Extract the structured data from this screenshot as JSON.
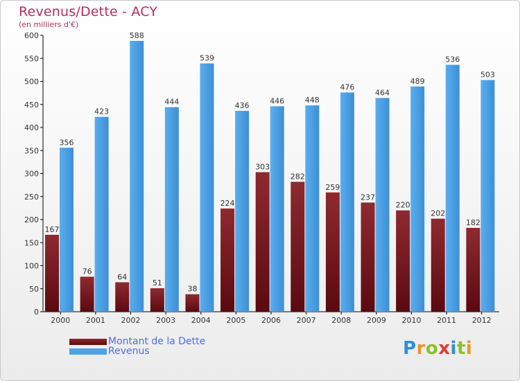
{
  "title": "Revenus/Dette - ACY",
  "subtitle": "(en milliers d'€)",
  "logo": {
    "letters": [
      {
        "ch": "P",
        "color": "#2f8fd5"
      },
      {
        "ch": "r",
        "color": "#e8962a"
      },
      {
        "ch": "o",
        "color": "#8cbf2e"
      },
      {
        "ch": "x",
        "color": "#e23b2e"
      },
      {
        "ch": "i",
        "color": "#2f8fd5"
      },
      {
        "ch": "t",
        "color": "#8cbf2e"
      },
      {
        "ch": "i",
        "color": "#e8962a"
      }
    ]
  },
  "colors": {
    "dette": "#7a1820",
    "revenus": "#4ea3e6",
    "text": "#333333",
    "axis": "#000000"
  },
  "chart_data": {
    "type": "bar",
    "title": "Revenus/Dette - ACY",
    "subtitle": "(en milliers d'€)",
    "categories": [
      "2000",
      "2001",
      "2002",
      "2003",
      "2004",
      "2005",
      "2006",
      "2007",
      "2008",
      "2009",
      "2010",
      "2011",
      "2012"
    ],
    "series": [
      {
        "name": "Montant de la Dette",
        "values": [
          167,
          76,
          64,
          51,
          38,
          224,
          303,
          282,
          259,
          237,
          220,
          202,
          182
        ]
      },
      {
        "name": "Revenus",
        "values": [
          356,
          423,
          588,
          444,
          539,
          436,
          446,
          448,
          476,
          464,
          489,
          536,
          503
        ]
      }
    ],
    "ylim": [
      0,
      600
    ],
    "yticks": [
      0,
      50,
      100,
      150,
      200,
      250,
      300,
      350,
      400,
      450,
      500,
      550,
      600
    ],
    "grid": false,
    "legend": "bottom-left"
  }
}
